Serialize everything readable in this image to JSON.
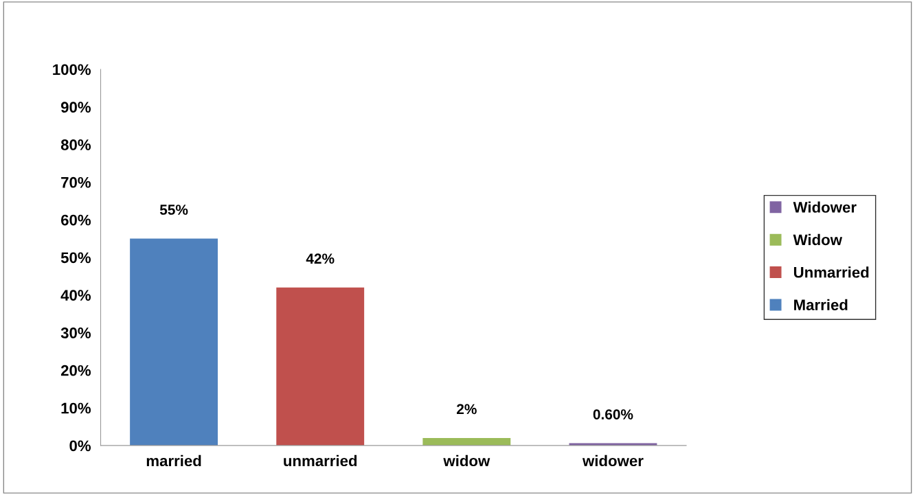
{
  "chart_data": {
    "type": "bar",
    "categories": [
      "married",
      "unmarried",
      "widow",
      "widower"
    ],
    "series": [
      {
        "name": "Married",
        "color": "#4f81bd",
        "values": [
          55,
          null,
          null,
          null
        ],
        "value_labels": [
          "55%",
          null,
          null,
          null
        ]
      },
      {
        "name": "Unmarried",
        "color": "#c0504d",
        "values": [
          null,
          42,
          null,
          null
        ],
        "value_labels": [
          null,
          "42%",
          null,
          null
        ]
      },
      {
        "name": "Widow",
        "color": "#9bbb59",
        "values": [
          null,
          null,
          2,
          null
        ],
        "value_labels": [
          null,
          null,
          "2%",
          null
        ]
      },
      {
        "name": "Widower",
        "color": "#8064a2",
        "values": [
          null,
          null,
          null,
          0.6
        ],
        "value_labels": [
          null,
          null,
          null,
          "0.60%"
        ]
      }
    ],
    "ylim": [
      0,
      100
    ],
    "yticks": [
      {
        "value": 0,
        "label": "0%"
      },
      {
        "value": 10,
        "label": "10%"
      },
      {
        "value": 20,
        "label": "20%"
      },
      {
        "value": 30,
        "label": "30%"
      },
      {
        "value": 40,
        "label": "40%"
      },
      {
        "value": 50,
        "label": "50%"
      },
      {
        "value": 60,
        "label": "60%"
      },
      {
        "value": 70,
        "label": "70%"
      },
      {
        "value": 80,
        "label": "80%"
      },
      {
        "value": 90,
        "label": "90%"
      },
      {
        "value": 100,
        "label": "100%"
      }
    ],
    "grid": false,
    "legend": "right"
  }
}
